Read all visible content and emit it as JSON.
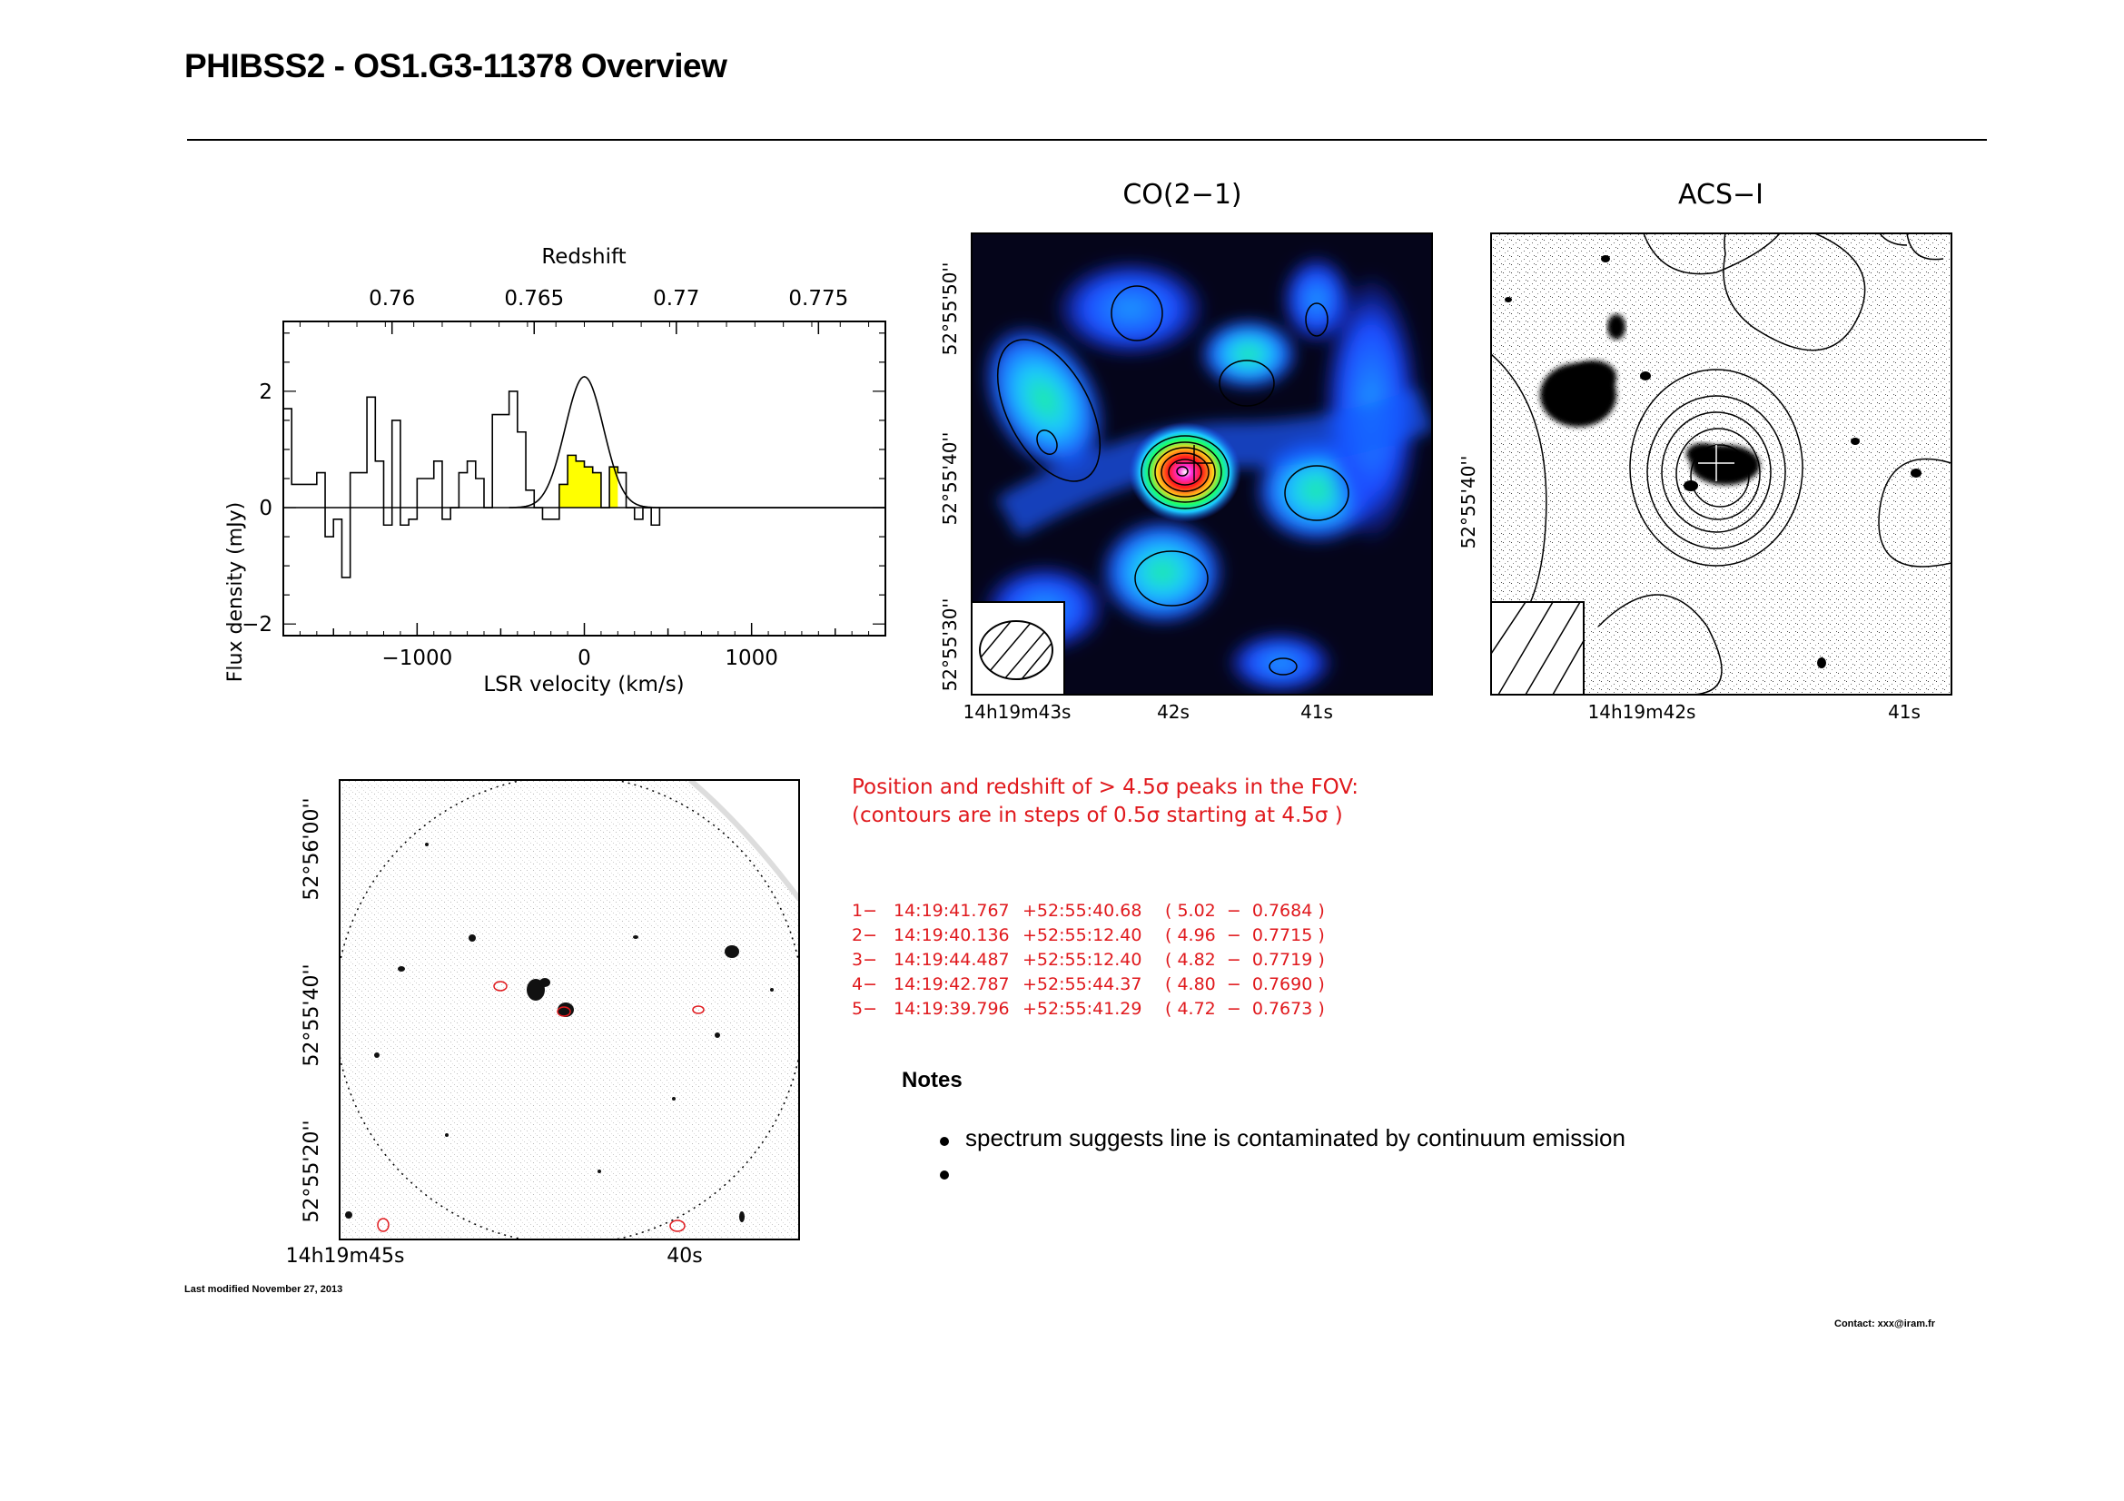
{
  "page": {
    "title": "PHIBSS2 - OS1.G3-11378 Overview",
    "last_modified": "Last modified November 27, 2013",
    "contact": "Contact: xxx@iram.fr"
  },
  "colors": {
    "line_fill": "#ffff00",
    "peak_text": "#e0191d"
  },
  "chart_data": [
    {
      "type": "line",
      "subtype": "step spectrum with gaussian fit",
      "xlabel": "LSR velocity (km/s)",
      "ylabel": "Flux density (mJy)",
      "top_axis_label": "Redshift",
      "xlim": [
        -1800,
        1800
      ],
      "ylim": [
        -2.2,
        3.2
      ],
      "x_ticks": [
        "−1000",
        "0",
        "1000"
      ],
      "x_tick_values": [
        -1000,
        0,
        1000
      ],
      "y_ticks": [
        "−2",
        "0",
        "2"
      ],
      "y_tick_values": [
        -2,
        0,
        2
      ],
      "top_ticks": [
        "0.76",
        "0.765",
        "0.77",
        "0.775"
      ],
      "top_tick_values": [
        -1150,
        -300,
        550,
        1400
      ],
      "series": [
        {
          "x": [
            -1800,
            -1750,
            -1700,
            -1650,
            -1600,
            -1550,
            -1500,
            -1450,
            -1400,
            -1350,
            -1300,
            -1250,
            -1200,
            -1150,
            -1100,
            -1050,
            -1000,
            -950,
            -900,
            -850,
            -800,
            -750,
            -700,
            -650,
            -600,
            -550,
            -500,
            -450,
            -400,
            -350,
            -300,
            -250,
            -200,
            -150,
            -100,
            -50,
            0,
            50,
            100,
            150,
            200,
            250,
            300,
            350,
            400,
            450,
            500,
            550,
            600,
            650,
            700,
            750,
            800,
            850,
            900,
            950,
            1000,
            1050,
            1100,
            1150,
            1200,
            1250,
            1300,
            1350,
            1400,
            1450,
            1500,
            1550,
            1600,
            1650,
            1700,
            1750
          ],
          "values": [
            1.7,
            0.4,
            0.4,
            0.4,
            0.6,
            -0.5,
            -0.2,
            -1.2,
            0.6,
            0.6,
            1.9,
            0.8,
            -0.3,
            1.5,
            -0.3,
            -0.2,
            0.5,
            0.5,
            0.8,
            -0.2,
            0.0,
            0.6,
            0.8,
            0.5,
            0.0,
            1.6,
            1.6,
            2.0,
            1.3,
            0.3,
            0.0,
            -0.2,
            -0.2,
            0.4,
            0.9,
            0.8,
            0.7,
            0.6,
            0.0,
            0.7,
            0.6,
            0.0,
            -0.2,
            0.0,
            -0.3,
            0.0,
            0.0,
            0.0,
            0.0,
            0.0,
            0.0,
            0.0,
            0.0,
            0.0,
            0.0,
            0.0,
            0.0,
            0.0,
            0.0,
            0.0,
            0.0,
            0.0,
            0.0,
            0.0,
            0.0,
            0.0,
            0.0,
            0.0,
            0.0,
            0.0,
            0.0,
            0.0
          ]
        }
      ]
    },
    {
      "type": "heatmap",
      "title": "CO(2−1)",
      "y_ticks": [
        "52°55'50''",
        "52°55'40''",
        "52°55'30''"
      ],
      "x_ticks": [
        "14h19m43s",
        "42s",
        "41s"
      ]
    },
    {
      "type": "heatmap",
      "title": "ACS−I",
      "y_ticks": [
        "52°55'40''"
      ],
      "x_ticks": [
        "14h19m42s",
        "41s"
      ]
    },
    {
      "type": "heatmap",
      "y_ticks": [
        "52°56'00''",
        "52°55'40''",
        "52°55'20''"
      ],
      "x_ticks": [
        "14h19m45s",
        "40s"
      ]
    }
  ],
  "peaks": {
    "heading1": "Position and redshift of > 4.5σ peaks in the FOV:",
    "heading2": "(contours are in steps of 0.5σ starting at 4.5σ )",
    "rows": [
      {
        "n": "1−",
        "ra": "14:19:41.767",
        "dec": "+52:55:40.68",
        "val": "( 5.02  −  0.7684 )"
      },
      {
        "n": "2−",
        "ra": "14:19:40.136",
        "dec": "+52:55:12.40",
        "val": "( 4.96  −  0.7715 )"
      },
      {
        "n": "3−",
        "ra": "14:19:44.487",
        "dec": "+52:55:12.40",
        "val": "( 4.82  −  0.7719 )"
      },
      {
        "n": "4−",
        "ra": "14:19:42.787",
        "dec": "+52:55:44.37",
        "val": "( 4.80  −  0.7690 )"
      },
      {
        "n": "5−",
        "ra": "14:19:39.796",
        "dec": "+52:55:41.29",
        "val": "( 4.72  −  0.7673 )"
      }
    ]
  },
  "notes": {
    "heading": "Notes",
    "items": [
      "spectrum suggests line is contaminated by continuum emission",
      ""
    ]
  }
}
